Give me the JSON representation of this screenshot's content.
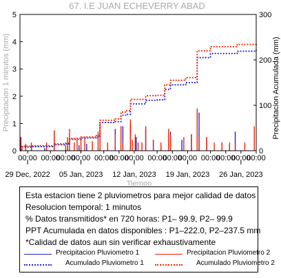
{
  "chart_data": {
    "type": "line",
    "title": "67. I.E JUAN ECHEVERRY ABAD",
    "xlabel": "Tiempo",
    "ylabel_left": "Precipitacion 1 minutos (mm)",
    "ylabel_right": "Precipitacion Acumulada (mm)",
    "ylim_left": [
      0,
      5
    ],
    "ylim_right": [
      0,
      300
    ],
    "yticks_left": [
      "0",
      "1",
      "2",
      "3",
      "4",
      "5"
    ],
    "yticks_right": [
      "0",
      "100",
      "200",
      "300"
    ],
    "x_start": "2022-12-28T00:00",
    "x_end": "2023-01-28T00:00",
    "x_minor_ticks": [
      "2022-12-29",
      "2023-01-01",
      "2023-01-03",
      "2023-01-05",
      "2023-01-08",
      "2023-01-10",
      "2023-01-12",
      "2023-01-15",
      "2023-01-17",
      "2023-01-19",
      "2023-01-22",
      "2023-01-24",
      "2023-01-26",
      "2023-01-28"
    ],
    "x_minor_tick_label": "00:00",
    "x_major_ticks": [
      {
        "date": "2022-12-29",
        "label": "29 Dec, 2022"
      },
      {
        "date": "2023-01-05",
        "label": "05 Jan, 2023"
      },
      {
        "date": "2023-01-12",
        "label": "12 Jan, 2023"
      },
      {
        "date": "2023-01-19",
        "label": "19 Jan, 2023"
      },
      {
        "date": "2023-01-26",
        "label": "26 Jan, 2023"
      }
    ],
    "series": [
      {
        "name": "Precipitacion Pluviometro 1",
        "axis": "left",
        "style": "solid",
        "color": "#2222cc",
        "points": [
          [
            "2022-12-28T03:00",
            0.5
          ],
          [
            "2022-12-29T12:00",
            0.2
          ],
          [
            "2022-12-31T06:00",
            0.1
          ],
          [
            "2023-01-01T12:00",
            0.7
          ],
          [
            "2023-01-03T06:00",
            0.4
          ],
          [
            "2023-01-04T18:00",
            0.2
          ],
          [
            "2023-01-05T18:00",
            0.25
          ],
          [
            "2023-01-07T12:00",
            0.7
          ],
          [
            "2023-01-09T12:00",
            0.8
          ],
          [
            "2023-01-10T12:00",
            0.9
          ],
          [
            "2023-01-11T12:00",
            1.0
          ],
          [
            "2023-01-12T06:00",
            0.5
          ],
          [
            "2023-01-13T12:00",
            0.8
          ],
          [
            "2023-01-14T12:00",
            0.4
          ],
          [
            "2023-01-15T12:00",
            0.2
          ],
          [
            "2023-01-16T18:00",
            0.7
          ],
          [
            "2023-01-18T06:00",
            0.4
          ],
          [
            "2023-01-19T12:00",
            0.6
          ],
          [
            "2023-01-20T12:00",
            1.4
          ],
          [
            "2023-01-21T12:00",
            0.5
          ],
          [
            "2023-01-23T12:00",
            0.3
          ],
          [
            "2023-01-24T12:00",
            0.2
          ],
          [
            "2023-01-25T06:00",
            0.7
          ]
        ]
      },
      {
        "name": "Precipitacion Pluviometro 2",
        "axis": "left",
        "style": "solid",
        "color": "#ee2200",
        "points": [
          [
            "2022-12-28T02:00",
            0.5
          ],
          [
            "2022-12-28T18:00",
            0.25
          ],
          [
            "2022-12-29T12:00",
            0.3
          ],
          [
            "2022-12-31T12:00",
            0.3
          ],
          [
            "2023-01-01T12:00",
            0.75
          ],
          [
            "2023-01-03T00:00",
            0.2
          ],
          [
            "2023-01-03T06:00",
            0.5
          ],
          [
            "2023-01-03T12:00",
            0.8
          ],
          [
            "2023-01-04T03:00",
            0.3
          ],
          [
            "2023-01-04T12:00",
            0.4
          ],
          [
            "2023-01-05T00:00",
            0.45
          ],
          [
            "2023-01-05T12:00",
            0.45
          ],
          [
            "2023-01-06T12:00",
            0.35
          ],
          [
            "2023-01-07T06:00",
            0.7
          ],
          [
            "2023-01-07T12:00",
            1.0
          ],
          [
            "2023-01-08T12:00",
            0.3
          ],
          [
            "2023-01-09T12:00",
            0.6
          ],
          [
            "2023-01-10T06:00",
            0.9
          ],
          [
            "2023-01-10T12:00",
            0.3
          ],
          [
            "2023-01-11T12:00",
            1.15
          ],
          [
            "2023-01-11T18:00",
            0.4
          ],
          [
            "2023-01-12T03:00",
            0.6
          ],
          [
            "2023-01-12T12:00",
            0.3
          ],
          [
            "2023-01-13T00:00",
            0.3
          ],
          [
            "2023-01-13T12:00",
            0.9
          ],
          [
            "2023-01-14T12:00",
            0.4
          ],
          [
            "2023-01-15T12:00",
            0.3
          ],
          [
            "2023-01-16T12:00",
            0.8
          ],
          [
            "2023-01-16T18:00",
            0.6
          ],
          [
            "2023-01-18T12:00",
            0.5
          ],
          [
            "2023-01-19T12:00",
            0.6
          ],
          [
            "2023-01-20T06:00",
            1.55
          ],
          [
            "2023-01-20T12:00",
            0.5
          ],
          [
            "2023-01-21T12:00",
            0.5
          ],
          [
            "2023-01-22T12:00",
            0.3
          ],
          [
            "2023-01-23T12:00",
            0.3
          ],
          [
            "2023-01-24T12:00",
            0.3
          ],
          [
            "2023-01-25T06:00",
            0.3
          ],
          [
            "2023-01-26T12:00",
            0.3
          ],
          [
            "2023-01-27T18:00",
            0.9
          ]
        ]
      },
      {
        "name": "Acumulado Pluviometro 1",
        "axis": "right",
        "style": "dotted",
        "color": "#2222cc",
        "points": [
          [
            "2022-12-28T00:00",
            0
          ],
          [
            "2022-12-28T06:00",
            8
          ],
          [
            "2022-12-29T12:00",
            9
          ],
          [
            "2023-01-01T12:00",
            13
          ],
          [
            "2023-01-03T00:00",
            15
          ],
          [
            "2023-01-03T12:00",
            25
          ],
          [
            "2023-01-05T00:00",
            28
          ],
          [
            "2023-01-07T00:00",
            30
          ],
          [
            "2023-01-07T12:00",
            62
          ],
          [
            "2023-01-09T12:00",
            64
          ],
          [
            "2023-01-10T06:00",
            78
          ],
          [
            "2023-01-11T00:00",
            80
          ],
          [
            "2023-01-11T12:00",
            103
          ],
          [
            "2023-01-13T12:00",
            111
          ],
          [
            "2023-01-15T00:00",
            112
          ],
          [
            "2023-01-16T00:00",
            135
          ],
          [
            "2023-01-16T18:00",
            145
          ],
          [
            "2023-01-18T18:00",
            150
          ],
          [
            "2023-01-20T06:00",
            205
          ],
          [
            "2023-01-22T00:00",
            214
          ],
          [
            "2023-01-25T12:00",
            219
          ],
          [
            "2023-01-28T00:00",
            222
          ]
        ]
      },
      {
        "name": "Acumulado Pluviometro 2",
        "axis": "right",
        "style": "dotted",
        "color": "#ee2200",
        "points": [
          [
            "2022-12-28T00:00",
            0
          ],
          [
            "2022-12-28T06:00",
            10
          ],
          [
            "2022-12-29T12:00",
            11
          ],
          [
            "2023-01-01T12:00",
            15
          ],
          [
            "2023-01-03T00:00",
            17
          ],
          [
            "2023-01-03T12:00",
            27
          ],
          [
            "2023-01-05T00:00",
            30
          ],
          [
            "2023-01-07T00:00",
            33
          ],
          [
            "2023-01-07T12:00",
            67
          ],
          [
            "2023-01-09T12:00",
            70
          ],
          [
            "2023-01-10T06:00",
            85
          ],
          [
            "2023-01-11T00:00",
            88
          ],
          [
            "2023-01-11T12:00",
            113
          ],
          [
            "2023-01-13T12:00",
            121
          ],
          [
            "2023-01-15T00:00",
            122
          ],
          [
            "2023-01-16T00:00",
            145
          ],
          [
            "2023-01-16T18:00",
            155
          ],
          [
            "2023-01-18T18:00",
            161
          ],
          [
            "2023-01-20T06:00",
            220
          ],
          [
            "2023-01-22T00:00",
            229
          ],
          [
            "2023-01-25T12:00",
            234
          ],
          [
            "2023-01-28T00:00",
            237.5
          ]
        ]
      }
    ]
  },
  "info": {
    "line1": "Esta estacion tiene 2 pluviometros para mejor calidad de datos",
    "line2": "Resolucion temporal: 1 minutos",
    "line3": "% Datos transmitidos* en 720 horas: P1– 99.9, P2– 99.9",
    "line4": "PPT Acumulada en datos disponibles : P1–222.0, P2–237.5 mm",
    "line5": "*Calidad de datos aun sin verificar exhaustivamente"
  },
  "legend": [
    {
      "label": "Precipitacion Pluviometro 1",
      "color": "#2222cc",
      "style": "solid"
    },
    {
      "label": "Precipitacion Pluviometro 2",
      "color": "#ee2200",
      "style": "solid"
    },
    {
      "label": "Acumulado Pluviometro 1",
      "color": "#2222cc",
      "style": "dotted"
    },
    {
      "label": "Acumulado Pluviometro 2",
      "color": "#ee2200",
      "style": "dotted"
    }
  ],
  "colors": {
    "axis_label_gray": "#aaaaaa"
  }
}
